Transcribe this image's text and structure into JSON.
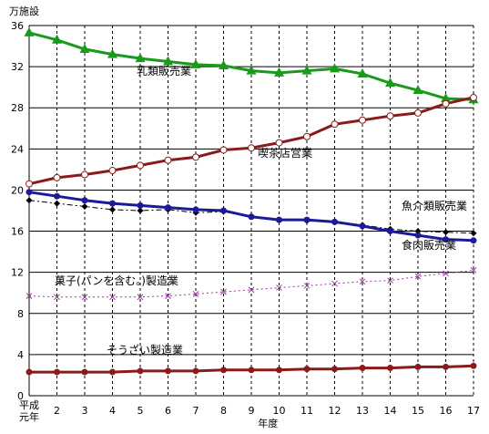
{
  "chart_data": {
    "type": "line",
    "ylabel": "万施設",
    "xlabel": "年度",
    "first_tick_label_lines": [
      "平成",
      "元年"
    ],
    "x": [
      1,
      2,
      3,
      4,
      5,
      6,
      7,
      8,
      9,
      10,
      11,
      12,
      13,
      14,
      15,
      16,
      17
    ],
    "x_tick_labels": [
      "平成元年",
      "2",
      "3",
      "4",
      "5",
      "6",
      "7",
      "8",
      "9",
      "10",
      "11",
      "12",
      "13",
      "14",
      "15",
      "16",
      "17"
    ],
    "ylim": [
      0,
      36
    ],
    "yticks": [
      0,
      4,
      8,
      12,
      16,
      20,
      24,
      28,
      32,
      36
    ],
    "grid": {
      "vertical": "dashed",
      "horizontal": "solid"
    },
    "series": [
      {
        "name": "乳類販売業",
        "color": "#1a9a1a",
        "marker": "triangle",
        "dash": "solid",
        "values": [
          35.3,
          34.6,
          33.7,
          33.2,
          32.8,
          32.5,
          32.2,
          32.1,
          31.6,
          31.4,
          31.6,
          31.8,
          31.3,
          30.4,
          29.7,
          28.9,
          28.8
        ]
      },
      {
        "name": "喫茶店営業",
        "color": "#8b1a1a",
        "marker": "circle-open",
        "dash": "solid",
        "values": [
          20.6,
          21.2,
          21.5,
          21.9,
          22.4,
          22.9,
          23.2,
          23.9,
          24.1,
          24.6,
          25.2,
          26.4,
          26.8,
          27.2,
          27.5,
          28.4,
          29.0
        ]
      },
      {
        "name": "魚介類販売業",
        "color": "#000000",
        "marker": "diamond",
        "dash": "dash-dot",
        "values": [
          19.0,
          18.7,
          18.4,
          18.1,
          18.0,
          18.1,
          17.8,
          17.9,
          17.4,
          17.1,
          17.0,
          16.9,
          16.6,
          16.2,
          16.0,
          15.9,
          15.8
        ]
      },
      {
        "name": "食肉販売業",
        "color": "#1a1a9a",
        "marker": "circle-filled",
        "dash": "solid",
        "values": [
          19.8,
          19.4,
          19.0,
          18.7,
          18.5,
          18.3,
          18.1,
          18.0,
          17.4,
          17.1,
          17.1,
          16.9,
          16.5,
          16.0,
          15.6,
          15.2,
          15.1
        ]
      },
      {
        "name": "菓子(パンを含む。)製造業",
        "color": "#9a3a9a",
        "marker": "x",
        "dash": "dotted",
        "values": [
          9.7,
          9.6,
          9.6,
          9.6,
          9.6,
          9.7,
          9.9,
          10.1,
          10.3,
          10.5,
          10.7,
          10.9,
          11.1,
          11.2,
          11.6,
          11.9,
          12.2
        ]
      },
      {
        "name": "そうざい製造業",
        "color": "#8b1a1a",
        "marker": "circle-filled",
        "dash": "solid",
        "values": [
          2.3,
          2.3,
          2.3,
          2.3,
          2.4,
          2.4,
          2.4,
          2.5,
          2.5,
          2.5,
          2.6,
          2.6,
          2.7,
          2.7,
          2.8,
          2.8,
          2.9
        ]
      }
    ]
  }
}
